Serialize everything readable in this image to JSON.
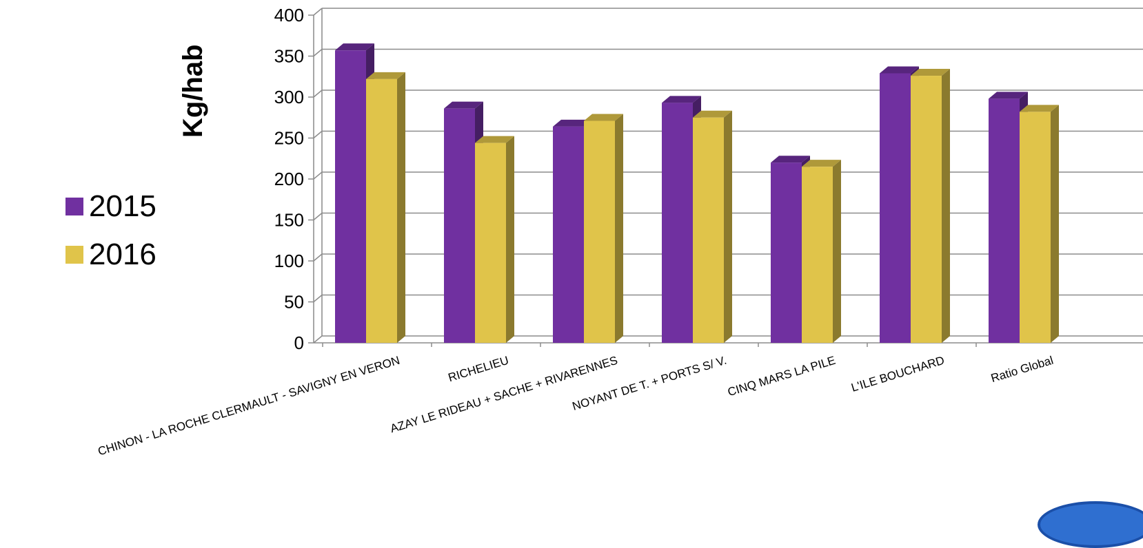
{
  "chart_data": {
    "type": "bar",
    "ylabel": "Kg/hab",
    "ylim": [
      0,
      400
    ],
    "yticks": [
      0,
      50,
      100,
      150,
      200,
      250,
      300,
      350,
      400
    ],
    "categories": [
      "CHINON - LA ROCHE CLERMAULT - SAVIGNY EN VERON",
      "RICHELIEU",
      "AZAY LE RIDEAU + SACHE + RIVARENNES",
      "NOYANT DE T. + PORTS S/ V.",
      "CINQ MARS LA PILE",
      "L'ILE BOUCHARD",
      "Ratio Global"
    ],
    "series": [
      {
        "name": "2015",
        "color": "#7030a0",
        "values": [
          357,
          286,
          264,
          293,
          220,
          329,
          298
        ]
      },
      {
        "name": "2016",
        "color": "#e0c44a",
        "values": [
          322,
          244,
          271,
          275,
          215,
          326,
          282
        ]
      }
    ],
    "grid": true,
    "legend_position": "left"
  }
}
